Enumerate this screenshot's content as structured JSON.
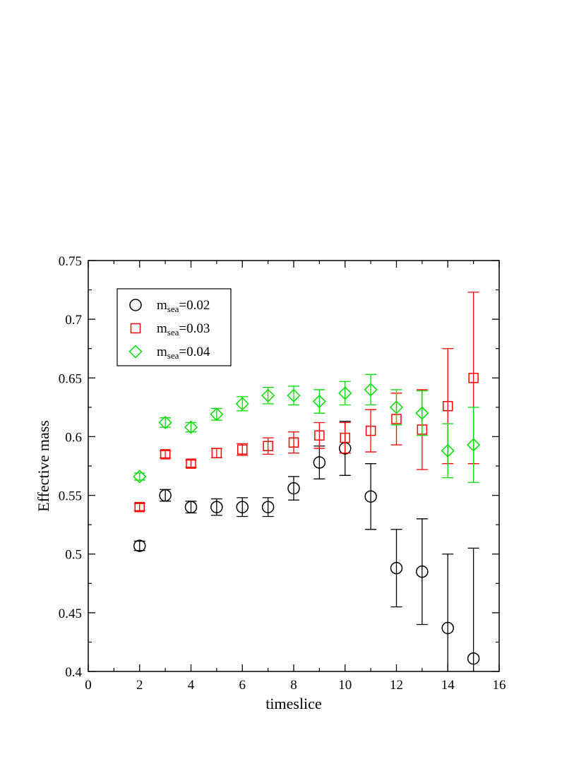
{
  "chart_data": {
    "type": "scatter",
    "xlabel": "timeslice",
    "ylabel": "Effective mass",
    "xlim": [
      0,
      16
    ],
    "ylim": [
      0.4,
      0.75
    ],
    "xticks": [
      0,
      2,
      4,
      6,
      8,
      10,
      12,
      14,
      16
    ],
    "xtick_labels": [
      "0",
      "2",
      "4",
      "6",
      "8",
      "10",
      "12",
      "14",
      "16"
    ],
    "yticks": [
      0.4,
      0.45,
      0.5,
      0.55,
      0.6,
      0.65,
      0.7,
      0.75
    ],
    "ytick_labels": [
      "0.4",
      "0.45",
      "0.5",
      "0.55",
      "0.6",
      "0.65",
      "0.7",
      "0.75"
    ],
    "grid": false,
    "legend_position": "top-left",
    "series": [
      {
        "name_main": "m",
        "name_sub": "sea",
        "name_value": "=0.02",
        "marker": "circle",
        "color": "#000000",
        "points": [
          {
            "x": 2,
            "y": 0.507,
            "err": 0.004
          },
          {
            "x": 3,
            "y": 0.55,
            "err": 0.005
          },
          {
            "x": 4,
            "y": 0.54,
            "err": 0.005
          },
          {
            "x": 5,
            "y": 0.54,
            "err": 0.007
          },
          {
            "x": 6,
            "y": 0.54,
            "err": 0.008
          },
          {
            "x": 7,
            "y": 0.54,
            "err": 0.008
          },
          {
            "x": 8,
            "y": 0.556,
            "err": 0.01
          },
          {
            "x": 9,
            "y": 0.578,
            "err": 0.014
          },
          {
            "x": 10,
            "y": 0.59,
            "err": 0.023
          },
          {
            "x": 11,
            "y": 0.549,
            "err": 0.028
          },
          {
            "x": 12,
            "y": 0.488,
            "err": 0.033
          },
          {
            "x": 13,
            "y": 0.485,
            "err": 0.045
          },
          {
            "x": 14,
            "y": 0.437,
            "err": 0.063
          },
          {
            "x": 15,
            "y": 0.411,
            "err": 0.094
          }
        ]
      },
      {
        "name_main": "m",
        "name_sub": "sea",
        "name_value": "=0.03",
        "marker": "square",
        "color": "#ff0000",
        "points": [
          {
            "x": 2,
            "y": 0.54,
            "err": 0.003
          },
          {
            "x": 3,
            "y": 0.585,
            "err": 0.003
          },
          {
            "x": 4,
            "y": 0.577,
            "err": 0.003
          },
          {
            "x": 5,
            "y": 0.586,
            "err": 0.004
          },
          {
            "x": 6,
            "y": 0.589,
            "err": 0.005
          },
          {
            "x": 7,
            "y": 0.592,
            "err": 0.007
          },
          {
            "x": 8,
            "y": 0.595,
            "err": 0.009
          },
          {
            "x": 9,
            "y": 0.601,
            "err": 0.011
          },
          {
            "x": 10,
            "y": 0.599,
            "err": 0.013
          },
          {
            "x": 11,
            "y": 0.605,
            "err": 0.018
          },
          {
            "x": 12,
            "y": 0.615,
            "err": 0.022
          },
          {
            "x": 13,
            "y": 0.606,
            "err": 0.034
          },
          {
            "x": 14,
            "y": 0.626,
            "err": 0.049
          },
          {
            "x": 15,
            "y": 0.65,
            "err": 0.073
          }
        ]
      },
      {
        "name_main": "m",
        "name_sub": "sea",
        "name_value": "=0.04",
        "marker": "diamond",
        "color": "#00dd00",
        "points": [
          {
            "x": 2,
            "y": 0.566,
            "err": 0.003
          },
          {
            "x": 3,
            "y": 0.612,
            "err": 0.004
          },
          {
            "x": 4,
            "y": 0.608,
            "err": 0.004
          },
          {
            "x": 5,
            "y": 0.619,
            "err": 0.005
          },
          {
            "x": 6,
            "y": 0.628,
            "err": 0.006
          },
          {
            "x": 7,
            "y": 0.635,
            "err": 0.007
          },
          {
            "x": 8,
            "y": 0.635,
            "err": 0.008
          },
          {
            "x": 9,
            "y": 0.63,
            "err": 0.01
          },
          {
            "x": 10,
            "y": 0.637,
            "err": 0.01
          },
          {
            "x": 11,
            "y": 0.64,
            "err": 0.013
          },
          {
            "x": 12,
            "y": 0.625,
            "err": 0.015
          },
          {
            "x": 13,
            "y": 0.62,
            "err": 0.019
          },
          {
            "x": 14,
            "y": 0.588,
            "err": 0.023
          },
          {
            "x": 15,
            "y": 0.593,
            "err": 0.032
          }
        ]
      }
    ]
  }
}
